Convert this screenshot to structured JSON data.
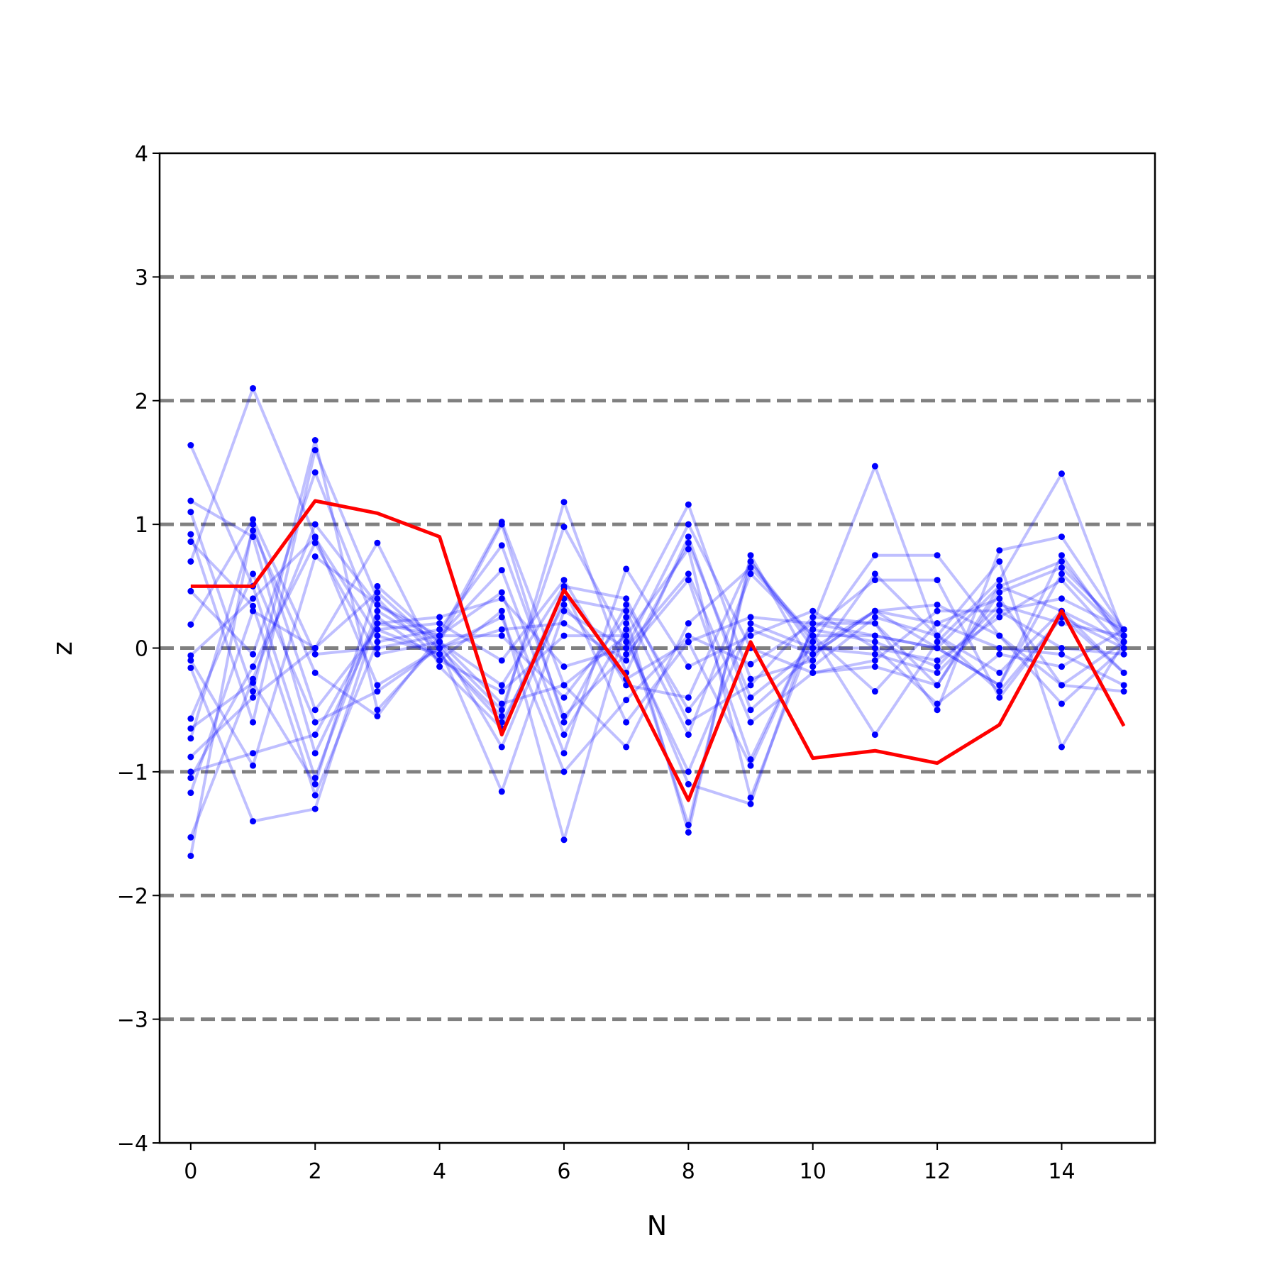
{
  "chart_data": {
    "type": "line",
    "title": "",
    "xlabel": "N",
    "ylabel": "z",
    "xlim": [
      -0.5,
      15.5
    ],
    "ylim": [
      -4,
      4
    ],
    "xticks": [
      0,
      2,
      4,
      6,
      8,
      10,
      12,
      14
    ],
    "yticks": [
      -4,
      -3,
      -2,
      -1,
      0,
      1,
      2,
      3,
      4
    ],
    "ytick_labels": [
      "−4",
      "−3",
      "−2",
      "−1",
      "0",
      "1",
      "2",
      "3",
      "4"
    ],
    "reference_lines": [
      -3,
      -2,
      -1,
      0,
      1,
      2,
      3
    ],
    "reference_line_color": "#808080",
    "background_series_color": "#0000ff",
    "highlight_color": "#ff0000",
    "x": [
      0,
      1,
      2,
      3,
      4,
      5,
      6,
      7,
      8,
      9,
      10,
      11,
      12,
      13,
      14,
      15
    ],
    "highlight_series": {
      "values": [
        0.5,
        0.5,
        1.19,
        1.09,
        0.9,
        -0.7,
        0.47,
        -0.23,
        -1.23,
        0.05,
        -0.89,
        -0.83,
        -0.93,
        -0.62,
        0.3,
        -0.63
      ]
    },
    "background_series": [
      {
        "values": [
          1.64,
          0.5,
          -1.05,
          0.3,
          0.0,
          -0.5,
          0.98,
          0.05,
          -1.0,
          0.2,
          0.0,
          0.3,
          0.0,
          -0.3,
          0.6,
          0.1
        ]
      },
      {
        "values": [
          1.19,
          0.9,
          -0.85,
          0.2,
          0.1,
          1.02,
          -0.3,
          -0.8,
          0.2,
          0.65,
          0.1,
          -0.35,
          0.2,
          0.4,
          -0.3,
          0.05
        ]
      },
      {
        "values": [
          1.1,
          -0.35,
          1.68,
          -0.5,
          0.05,
          -0.3,
          0.5,
          0.4,
          -0.6,
          -0.3,
          0.25,
          0.2,
          -0.5,
          0.79,
          0.9,
          0.15
        ]
      },
      {
        "values": [
          0.92,
          -0.6,
          1.6,
          0.4,
          -0.1,
          0.3,
          -1.55,
          0.2,
          1.16,
          -0.25,
          -0.1,
          0.6,
          0.1,
          -0.2,
          0.3,
          -0.2
        ]
      },
      {
        "values": [
          0.86,
          0.34,
          -1.19,
          0.05,
          0.15,
          0.83,
          -0.55,
          -0.05,
          0.55,
          -0.9,
          0.15,
          0.55,
          0.55,
          -0.4,
          0.25,
          0.0
        ]
      },
      {
        "values": [
          0.7,
          2.1,
          0.9,
          -0.3,
          0.0,
          -1.16,
          0.3,
          0.0,
          1.0,
          0.0,
          -0.2,
          -0.15,
          -0.3,
          0.5,
          0.7,
          0.1
        ]
      },
      {
        "values": [
          0.46,
          -0.05,
          1.42,
          0.15,
          0.2,
          -0.1,
          0.55,
          -0.3,
          -0.4,
          0.7,
          0.05,
          0.75,
          0.75,
          0.1,
          -0.3,
          -0.35
        ]
      },
      {
        "values": [
          0.19,
          1.04,
          -0.05,
          0.0,
          0.1,
          0.45,
          -0.85,
          0.64,
          -0.15,
          0.1,
          0.3,
          0.0,
          -0.1,
          0.25,
          0.55,
          0.0
        ]
      },
      {
        "values": [
          -0.06,
          0.4,
          0.89,
          0.1,
          -0.05,
          -0.55,
          1.18,
          -0.2,
          0.9,
          -0.5,
          -0.05,
          0.3,
          0.2,
          0.0,
          -0.05,
          -0.3
        ]
      },
      {
        "values": [
          -0.1,
          -0.95,
          0.74,
          0.35,
          0.1,
          0.63,
          -0.7,
          0.15,
          -1.43,
          0.7,
          0.0,
          -0.05,
          -0.2,
          0.3,
          0.4,
          0.15
        ]
      },
      {
        "values": [
          -0.16,
          -1.4,
          -1.3,
          0.25,
          -0.1,
          -0.35,
          0.1,
          0.1,
          0.8,
          -1.21,
          0.1,
          0.1,
          0.0,
          -0.3,
          0.75,
          0.05
        ]
      },
      {
        "values": [
          -0.57,
          0.6,
          -0.6,
          -0.35,
          0.0,
          0.25,
          -1.0,
          -0.42,
          0.1,
          -0.13,
          0.2,
          1.47,
          0.1,
          -0.35,
          0.25,
          -0.2
        ]
      },
      {
        "values": [
          -0.65,
          -0.28,
          -1.1,
          0.5,
          0.05,
          -0.8,
          0.4,
          0.3,
          -0.7,
          0.6,
          0.1,
          -0.7,
          0.05,
          0.55,
          1.41,
          0.1
        ]
      },
      {
        "values": [
          -0.73,
          0.95,
          -0.2,
          -0.55,
          0.1,
          0.1,
          -0.4,
          0.25,
          -1.49,
          0.75,
          -0.15,
          0.25,
          0.1,
          0.7,
          -0.8,
          0.05
        ]
      },
      {
        "values": [
          -0.88,
          -0.4,
          0.0,
          0.85,
          -0.15,
          -0.65,
          0.48,
          -0.6,
          0.05,
          0.25,
          0.2,
          0.2,
          -0.3,
          0.45,
          0.65,
          0.15
        ]
      },
      {
        "values": [
          -1.0,
          -0.85,
          -0.7,
          0.2,
          0.25,
          0.4,
          -0.15,
          0.0,
          0.6,
          -0.6,
          -0.2,
          -0.1,
          0.3,
          0.3,
          0.0,
          -0.05
        ]
      },
      {
        "values": [
          -1.05,
          -0.15,
          0.85,
          -0.05,
          0.05,
          -0.45,
          -0.3,
          0.1,
          -1.1,
          -1.26,
          0.2,
          0.1,
          0.0,
          0.5,
          0.3,
          0.05
        ]
      },
      {
        "values": [
          -1.17,
          0.3,
          0.0,
          0.45,
          0.0,
          0.15,
          0.2,
          -0.1,
          0.85,
          -0.4,
          0.0,
          0.0,
          -0.45,
          -0.05,
          -0.15,
          0.15
        ]
      },
      {
        "values": [
          -1.53,
          -0.25,
          1.0,
          0.35,
          0.05,
          1.0,
          -0.6,
          0.35,
          -0.5,
          0.15,
          -0.05,
          0.3,
          0.35,
          0.1,
          -0.45,
          0.0
        ]
      },
      {
        "values": [
          -1.68,
          1.0,
          -0.5,
          0.15,
          -0.05,
          -0.6,
          0.35,
          -0.25,
          0.05,
          -0.95,
          0.15,
          0.05,
          -0.15,
          0.35,
          0.2,
          0.1
        ]
      }
    ]
  }
}
